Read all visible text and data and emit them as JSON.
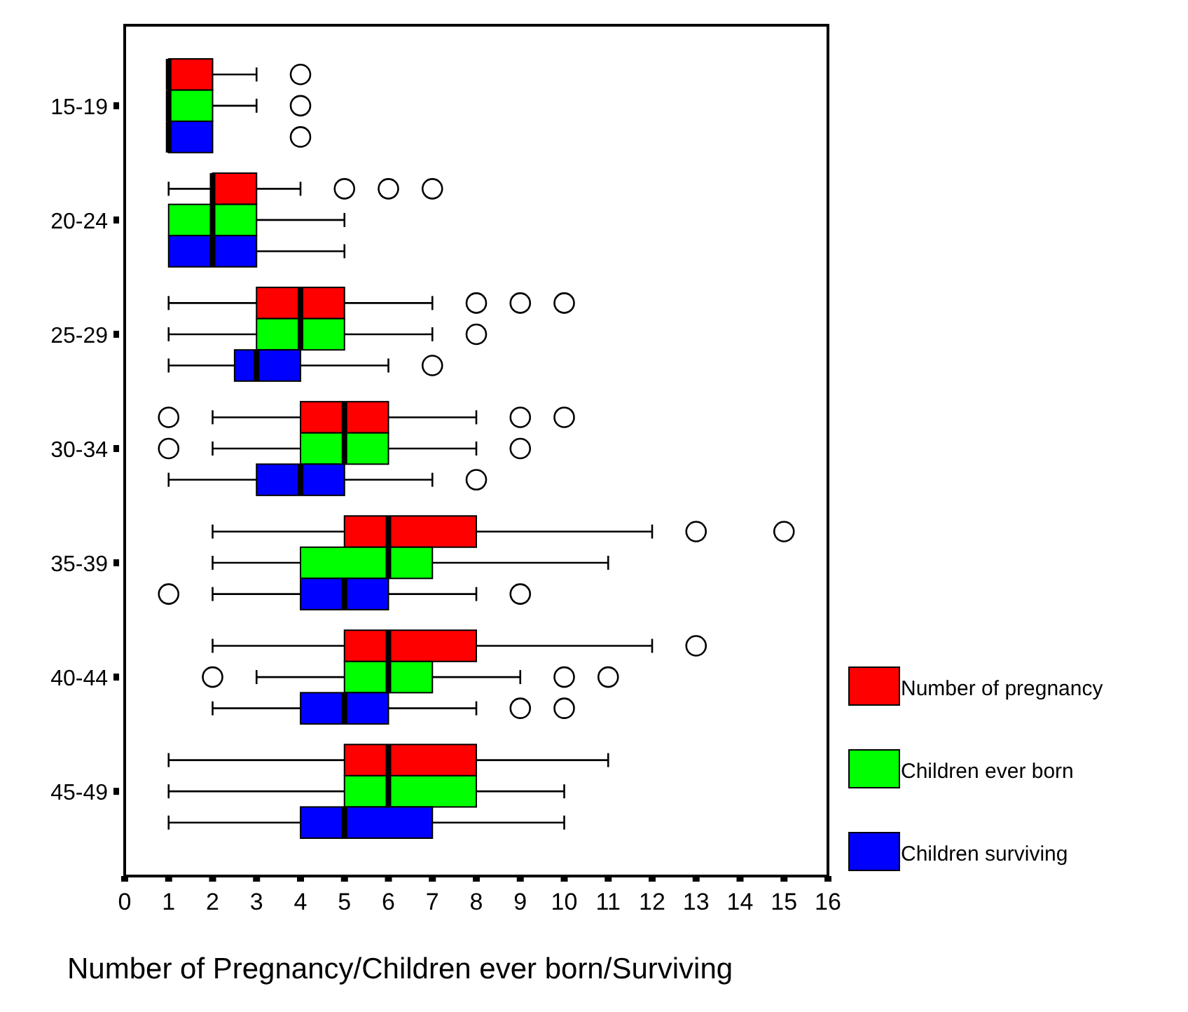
{
  "chart_data": {
    "type": "box",
    "orientation": "horizontal",
    "xlabel": "Number of Pregnancy/Children ever born/Surviving",
    "categories": [
      "15-19",
      "20-24",
      "25-29",
      "30-34",
      "35-39",
      "40-44",
      "45-49"
    ],
    "xlim": [
      0,
      16
    ],
    "xticks": [
      0,
      1,
      2,
      3,
      4,
      5,
      6,
      7,
      8,
      9,
      10,
      11,
      12,
      13,
      14,
      15,
      16
    ],
    "grid": false,
    "legend": "right",
    "series": [
      {
        "name": "Number of pregnancy",
        "color": "#ff0000",
        "boxes": [
          {
            "low": 1,
            "q1": 1,
            "median": 1,
            "q3": 2,
            "high": 3,
            "outliers": [
              4
            ]
          },
          {
            "low": 1,
            "q1": 2,
            "median": 2,
            "q3": 3,
            "high": 4,
            "outliers": [
              5,
              6,
              7
            ]
          },
          {
            "low": 1,
            "q1": 3,
            "median": 4,
            "q3": 5,
            "high": 7,
            "outliers": [
              8,
              9,
              10
            ]
          },
          {
            "low": 2,
            "q1": 4,
            "median": 5,
            "q3": 6,
            "high": 8,
            "outliers": [
              1,
              9,
              10
            ]
          },
          {
            "low": 2,
            "q1": 5,
            "median": 6,
            "q3": 8,
            "high": 12,
            "outliers": [
              13,
              15
            ]
          },
          {
            "low": 2,
            "q1": 5,
            "median": 6,
            "q3": 8,
            "high": 12,
            "outliers": [
              13
            ]
          },
          {
            "low": 1,
            "q1": 5,
            "median": 6,
            "q3": 8,
            "high": 11
          }
        ]
      },
      {
        "name": "Children ever born",
        "color": "#00ff00",
        "boxes": [
          {
            "low": 1,
            "q1": 1,
            "median": 1,
            "q3": 2,
            "high": 3,
            "outliers": [
              4
            ]
          },
          {
            "low": 1,
            "q1": 1,
            "median": 2,
            "q3": 3,
            "high": 5
          },
          {
            "low": 1,
            "q1": 3,
            "median": 4,
            "q3": 5,
            "high": 7,
            "outliers": [
              8
            ]
          },
          {
            "low": 2,
            "q1": 4,
            "median": 5,
            "q3": 6,
            "high": 8,
            "outliers": [
              1,
              9
            ]
          },
          {
            "low": 2,
            "q1": 4,
            "median": 6,
            "q3": 7,
            "high": 11
          },
          {
            "low": 3,
            "q1": 5,
            "median": 6,
            "q3": 7,
            "high": 9,
            "outliers": [
              2,
              10,
              11
            ]
          },
          {
            "low": 1,
            "q1": 5,
            "median": 6,
            "q3": 8,
            "high": 10
          }
        ]
      },
      {
        "name": "Children surviving",
        "color": "#0000ff",
        "boxes": [
          {
            "low": 1,
            "q1": 1,
            "median": 1,
            "q3": 2,
            "high": 2,
            "outliers": [
              4
            ]
          },
          {
            "low": 1,
            "q1": 1,
            "median": 2,
            "q3": 3,
            "high": 5
          },
          {
            "low": 1,
            "q1": 2.5,
            "median": 3,
            "q3": 4,
            "high": 6,
            "outliers": [
              7
            ]
          },
          {
            "low": 1,
            "q1": 3,
            "median": 4,
            "q3": 5,
            "high": 7,
            "outliers": [
              8
            ]
          },
          {
            "low": 2,
            "q1": 4,
            "median": 5,
            "q3": 6,
            "high": 8,
            "outliers": [
              1,
              9
            ]
          },
          {
            "low": 2,
            "q1": 4,
            "median": 5,
            "q3": 6,
            "high": 8,
            "outliers": [
              9,
              10
            ]
          },
          {
            "low": 1,
            "q1": 4,
            "median": 5,
            "q3": 7,
            "high": 10
          }
        ]
      }
    ]
  }
}
